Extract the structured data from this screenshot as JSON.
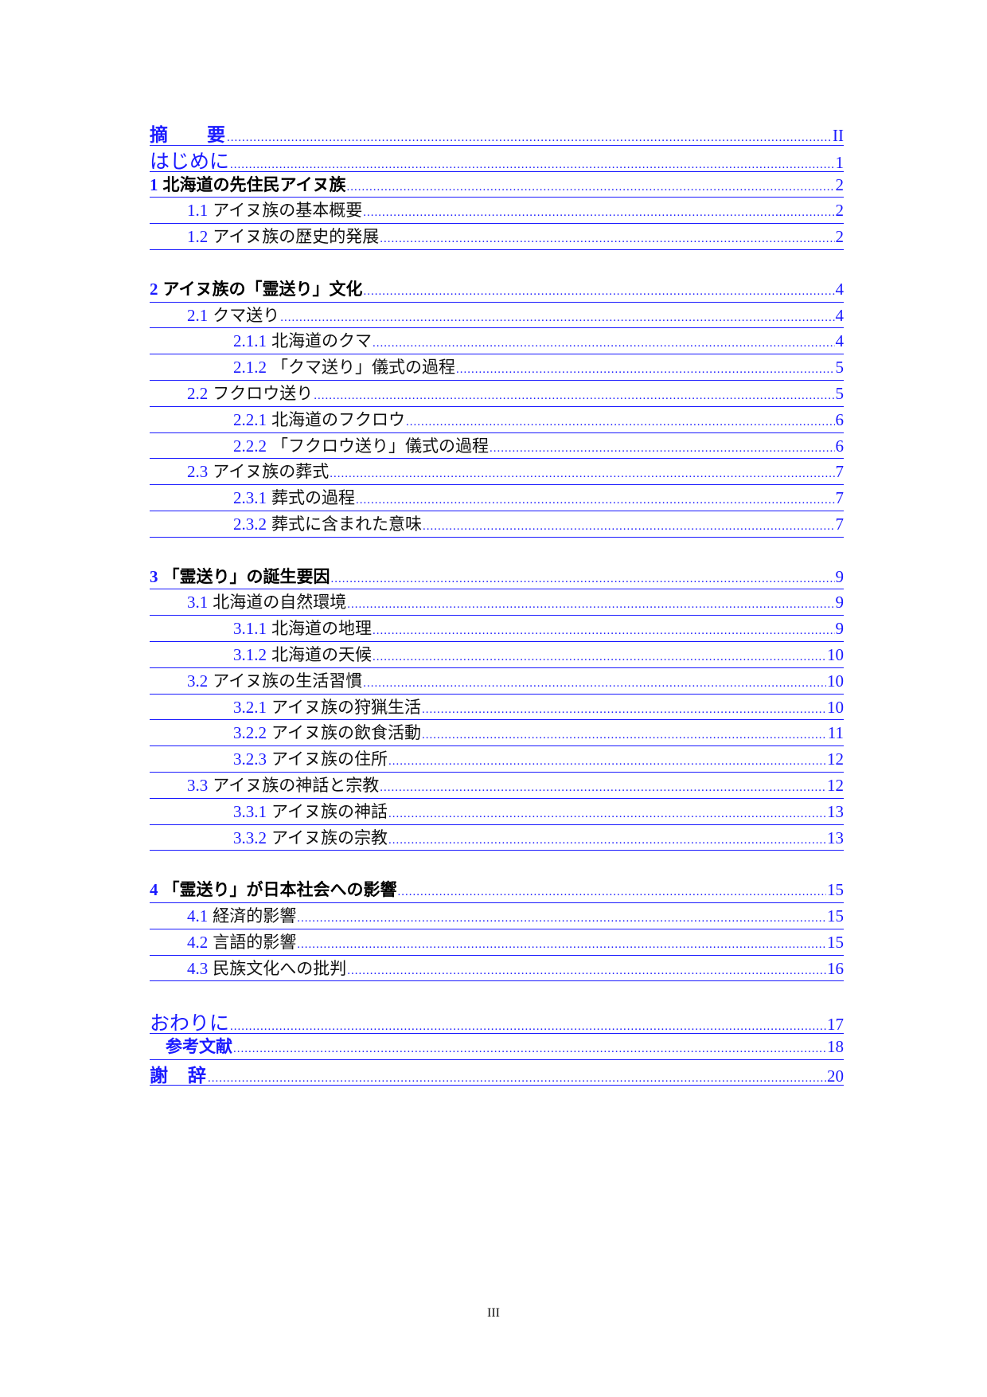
{
  "toc": [
    {
      "style": "bigbold",
      "level": 0,
      "num": "",
      "title": "摘　　要",
      "page": "II"
    },
    {
      "style": "bigplain",
      "level": 0,
      "num": "",
      "title": "はじめに",
      "page": "1"
    },
    {
      "style": "chapter",
      "level": 0,
      "num": "1",
      "title": "北海道の先住民アイヌ族",
      "page": "2"
    },
    {
      "style": "sub",
      "level": 1,
      "num": "1.1",
      "title": "アイヌ族の基本概要",
      "page": "2"
    },
    {
      "style": "sub",
      "level": 1,
      "num": "1.2",
      "title": "アイヌ族の歴史的発展",
      "page": "2"
    },
    {
      "style": "gap"
    },
    {
      "style": "chapter",
      "level": 0,
      "num": "2",
      "title": "アイヌ族の「霊送り」文化",
      "page": "4"
    },
    {
      "style": "sub",
      "level": 1,
      "num": "2.1",
      "title": "クマ送り",
      "page": "4"
    },
    {
      "style": "sub",
      "level": 2,
      "num": "2.1.1",
      "title": "北海道のクマ",
      "page": "4"
    },
    {
      "style": "sub",
      "level": 2,
      "num": "2.1.2",
      "title": "「クマ送り」儀式の過程",
      "page": "5"
    },
    {
      "style": "sub",
      "level": 1,
      "num": "2.2",
      "title": "フクロウ送り",
      "page": "5"
    },
    {
      "style": "sub",
      "level": 2,
      "num": "2.2.1",
      "title": "北海道のフクロウ",
      "page": "6"
    },
    {
      "style": "sub",
      "level": 2,
      "num": "2.2.2",
      "title": "「フクロウ送り」儀式の過程",
      "page": "6"
    },
    {
      "style": "sub",
      "level": 1,
      "num": "2.3",
      "title": "アイヌ族の葬式",
      "page": "7"
    },
    {
      "style": "sub",
      "level": 2,
      "num": "2.3.1",
      "title": "葬式の過程",
      "page": "7"
    },
    {
      "style": "sub",
      "level": 2,
      "num": "2.3.2",
      "title": "葬式に含まれた意味",
      "page": "7"
    },
    {
      "style": "gap"
    },
    {
      "style": "chapter",
      "level": 0,
      "num": "3",
      "title": "「霊送り」の誕生要因",
      "page": "9"
    },
    {
      "style": "sub",
      "level": 1,
      "num": "3.1",
      "title": "北海道の自然環境",
      "page": "9"
    },
    {
      "style": "sub",
      "level": 2,
      "num": "3.1.1",
      "title": "北海道の地理",
      "page": "9"
    },
    {
      "style": "sub",
      "level": 2,
      "num": "3.1.2",
      "title": "北海道の天候",
      "page": "10"
    },
    {
      "style": "sub",
      "level": 1,
      "num": "3.2",
      "title": "アイヌ族の生活習慣",
      "page": "10"
    },
    {
      "style": "sub",
      "level": 2,
      "num": "3.2.1",
      "title": "アイヌ族の狩猟生活",
      "page": "10"
    },
    {
      "style": "sub",
      "level": 2,
      "num": "3.2.2",
      "title": "アイヌ族の飲食活動",
      "page": "11"
    },
    {
      "style": "sub",
      "level": 2,
      "num": "3.2.3",
      "title": "アイヌ族の住所",
      "page": "12"
    },
    {
      "style": "sub",
      "level": 1,
      "num": "3.3",
      "title": "アイヌ族の神話と宗教",
      "page": "12"
    },
    {
      "style": "sub",
      "level": 2,
      "num": "3.3.1",
      "title": "アイヌ族の神話",
      "page": "13"
    },
    {
      "style": "sub",
      "level": 2,
      "num": "3.3.2",
      "title": "アイヌ族の宗教",
      "page": "13"
    },
    {
      "style": "gap"
    },
    {
      "style": "chapter",
      "level": 0,
      "num": "4",
      "title": "「霊送り」が日本社会への影響",
      "page": "15"
    },
    {
      "style": "sub",
      "level": 1,
      "num": "4.1",
      "title": "経済的影響",
      "page": "15"
    },
    {
      "style": "sub",
      "level": 1,
      "num": "4.2",
      "title": "言語的影響",
      "page": "15"
    },
    {
      "style": "sub",
      "level": 1,
      "num": "4.3",
      "title": "民族文化への批判",
      "page": "16"
    },
    {
      "style": "gap"
    },
    {
      "style": "bigplain",
      "level": 0,
      "num": "",
      "title": "おわりに",
      "page": "17"
    },
    {
      "style": "ref",
      "level": 0,
      "num": "",
      "title": "参考文献",
      "page": "18"
    },
    {
      "style": "bigbold",
      "level": 0,
      "num": "",
      "title": "謝　辞",
      "page": "20"
    }
  ],
  "footer": {
    "page_number": "III"
  }
}
